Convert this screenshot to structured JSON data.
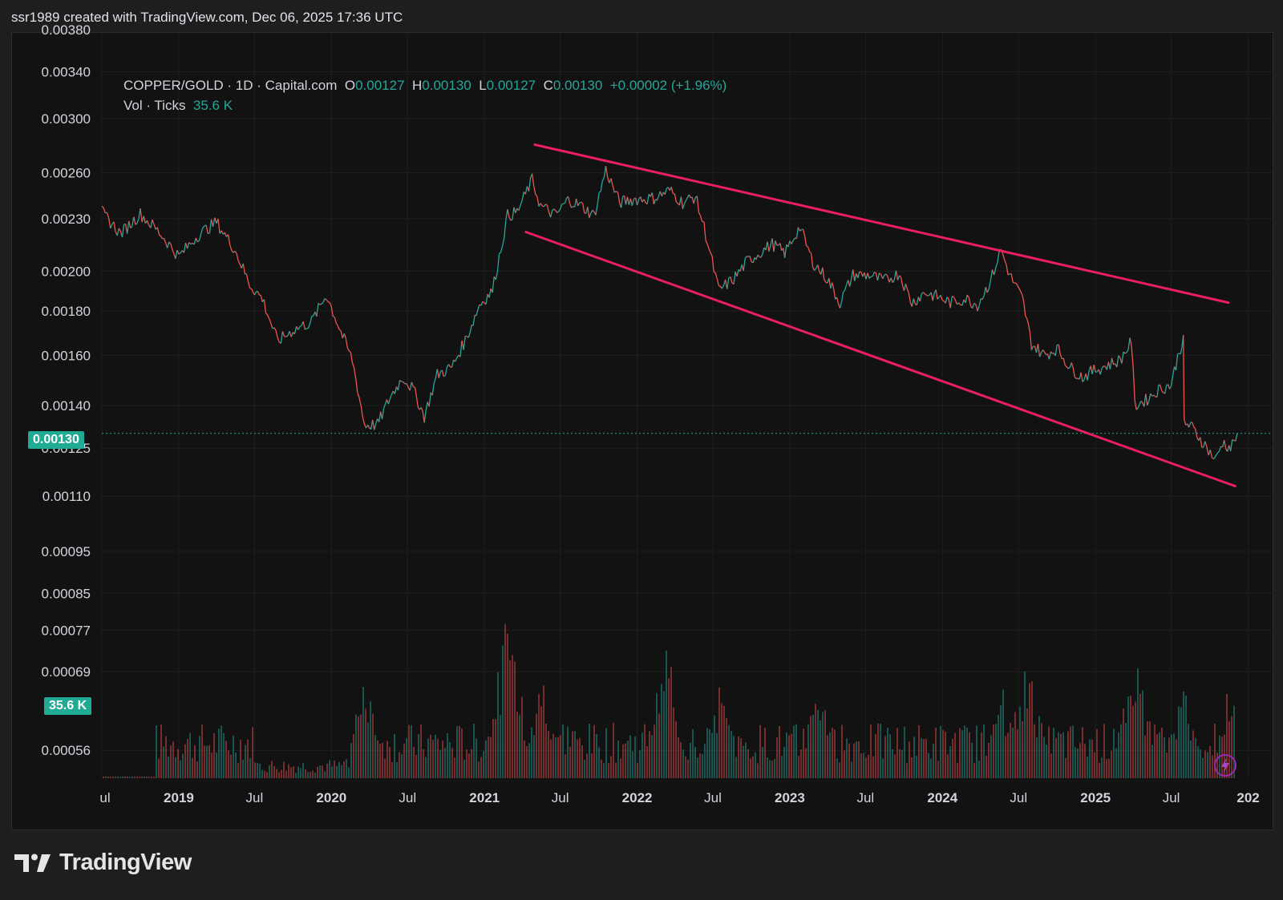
{
  "header": {
    "text": "ssr1989 created with TradingView.com, Dec 06, 2025 17:36 UTC"
  },
  "legend": {
    "symbol": "COPPER/GOLD · 1D · Capital.com",
    "o_label": "O",
    "o_value": "0.00127",
    "h_label": "H",
    "h_value": "0.00130",
    "l_label": "L",
    "l_value": "0.00127",
    "c_label": "C",
    "c_value": "0.00130",
    "change": "+0.00002 (+1.96%)",
    "vol_label": "Vol · Ticks",
    "vol_value": "35.6 K"
  },
  "brand": {
    "name": "TradingView"
  },
  "colors": {
    "up": "#26a69a",
    "down": "#ef5350",
    "trend": "#e91e63",
    "price_tag": "#22ab94",
    "background": "#121212",
    "grid": "#1f1f1f"
  },
  "chart_data": {
    "type": "line",
    "title": "COPPER/GOLD · 1D · Capital.com",
    "scale": "log",
    "ylim": [
      0.00052,
      0.00385
    ],
    "y_ticks": [
      "0.00380",
      "0.00340",
      "0.00300",
      "0.00260",
      "0.00230",
      "0.00200",
      "0.00180",
      "0.00160",
      "0.00140",
      "0.00125",
      "0.00110",
      "0.00095",
      "0.00085",
      "0.00077",
      "0.00069",
      "0.00056"
    ],
    "x_ticks": [
      "ul",
      "2019",
      "Jul",
      "2020",
      "Jul",
      "2021",
      "Jul",
      "2022",
      "Jul",
      "2023",
      "Jul",
      "2024",
      "Jul",
      "2025",
      "Jul",
      "202"
    ],
    "x_start": "2018-07-01",
    "x_end": "2025-12-06",
    "last_price": "0.00130",
    "last_price_value": 0.0013,
    "volume_last": "35.6 K",
    "series": [
      {
        "points": [
          [
            "2018-07-01",
            0.00234
          ],
          [
            "2018-08-15",
            0.00221
          ],
          [
            "2018-10-01",
            0.00233
          ],
          [
            "2018-11-15",
            0.00222
          ],
          [
            "2019-01-01",
            0.00208
          ],
          [
            "2019-02-15",
            0.0022
          ],
          [
            "2019-04-01",
            0.00228
          ],
          [
            "2019-05-15",
            0.00212
          ],
          [
            "2019-06-20",
            0.00193
          ],
          [
            "2019-07-20",
            0.00186
          ],
          [
            "2019-08-25",
            0.00166
          ],
          [
            "2019-10-01",
            0.00171
          ],
          [
            "2019-11-15",
            0.00175
          ],
          [
            "2019-12-20",
            0.00188
          ],
          [
            "2020-01-20",
            0.00172
          ],
          [
            "2020-02-20",
            0.00158
          ],
          [
            "2020-03-20",
            0.00133
          ],
          [
            "2020-04-20",
            0.00133
          ],
          [
            "2020-05-20",
            0.00143
          ],
          [
            "2020-06-20",
            0.00151
          ],
          [
            "2020-07-15",
            0.00146
          ],
          [
            "2020-08-10",
            0.00136
          ],
          [
            "2020-09-10",
            0.00152
          ],
          [
            "2020-10-15",
            0.00155
          ],
          [
            "2020-11-20",
            0.00168
          ],
          [
            "2020-12-20",
            0.00183
          ],
          [
            "2021-01-20",
            0.0019
          ],
          [
            "2021-02-25",
            0.00232
          ],
          [
            "2021-03-20",
            0.00234
          ],
          [
            "2021-04-25",
            0.00255
          ],
          [
            "2021-05-15",
            0.00238
          ],
          [
            "2021-06-20",
            0.00232
          ],
          [
            "2021-07-20",
            0.00242
          ],
          [
            "2021-08-20",
            0.00238
          ],
          [
            "2021-09-20",
            0.00232
          ],
          [
            "2021-10-18",
            0.00262
          ],
          [
            "2021-11-20",
            0.0024
          ],
          [
            "2021-12-20",
            0.00242
          ],
          [
            "2022-02-10",
            0.00243
          ],
          [
            "2022-03-20",
            0.00248
          ],
          [
            "2022-04-20",
            0.0024
          ],
          [
            "2022-05-20",
            0.00244
          ],
          [
            "2022-06-10",
            0.00225
          ],
          [
            "2022-07-15",
            0.0019
          ],
          [
            "2022-08-20",
            0.00196
          ],
          [
            "2022-09-20",
            0.00205
          ],
          [
            "2022-10-20",
            0.0021
          ],
          [
            "2022-11-20",
            0.00215
          ],
          [
            "2022-12-20",
            0.0021
          ],
          [
            "2023-01-25",
            0.00225
          ],
          [
            "2023-02-25",
            0.00205
          ],
          [
            "2023-04-01",
            0.00196
          ],
          [
            "2023-05-01",
            0.00184
          ],
          [
            "2023-06-01",
            0.00198
          ],
          [
            "2023-07-10",
            0.00198
          ],
          [
            "2023-08-15",
            0.00195
          ],
          [
            "2023-09-20",
            0.00199
          ],
          [
            "2023-10-20",
            0.00184
          ],
          [
            "2023-11-20",
            0.00189
          ],
          [
            "2023-12-20",
            0.00187
          ],
          [
            "2024-01-20",
            0.00184
          ],
          [
            "2024-02-25",
            0.00186
          ],
          [
            "2024-03-25",
            0.00183
          ],
          [
            "2024-04-25",
            0.00195
          ],
          [
            "2024-05-20",
            0.00212
          ],
          [
            "2024-06-10",
            0.00198
          ],
          [
            "2024-07-10",
            0.00186
          ],
          [
            "2024-08-01",
            0.00165
          ],
          [
            "2024-09-01",
            0.0016
          ],
          [
            "2024-10-01",
            0.00163
          ],
          [
            "2024-11-01",
            0.00155
          ],
          [
            "2024-12-01",
            0.00151
          ],
          [
            "2025-01-01",
            0.00154
          ],
          [
            "2025-02-01",
            0.00156
          ],
          [
            "2025-03-01",
            0.00158
          ],
          [
            "2025-03-28",
            0.00166
          ],
          [
            "2025-04-05",
            0.0014
          ],
          [
            "2025-05-01",
            0.00142
          ],
          [
            "2025-06-01",
            0.00146
          ],
          [
            "2025-07-01",
            0.00148
          ],
          [
            "2025-07-20",
            0.00162
          ],
          [
            "2025-07-30",
            0.00166
          ],
          [
            "2025-08-01",
            0.00134
          ],
          [
            "2025-08-20",
            0.00132
          ],
          [
            "2025-09-20",
            0.00126
          ],
          [
            "2025-10-15",
            0.00121
          ],
          [
            "2025-11-01",
            0.00127
          ],
          [
            "2025-11-20",
            0.00125
          ],
          [
            "2025-12-06",
            0.0013
          ]
        ]
      }
    ],
    "trendlines": [
      {
        "from": [
          "2021-05-01",
          0.0028
        ],
        "to": [
          "2025-11-15",
          0.00184
        ]
      },
      {
        "from": [
          "2021-04-10",
          0.00222
        ],
        "to": [
          "2025-12-01",
          0.00113
        ]
      }
    ],
    "volume_spikes": [
      [
        "2020-03-20",
        0.55
      ],
      [
        "2021-02-25",
        1.0
      ],
      [
        "2021-05-20",
        0.6
      ],
      [
        "2022-03-08",
        0.78
      ],
      [
        "2022-07-15",
        0.5
      ],
      [
        "2023-03-10",
        0.6
      ],
      [
        "2024-05-20",
        0.52
      ],
      [
        "2024-07-20",
        0.71
      ],
      [
        "2025-04-05",
        0.74
      ],
      [
        "2025-07-30",
        0.5
      ],
      [
        "2025-11-25",
        0.63
      ]
    ]
  }
}
